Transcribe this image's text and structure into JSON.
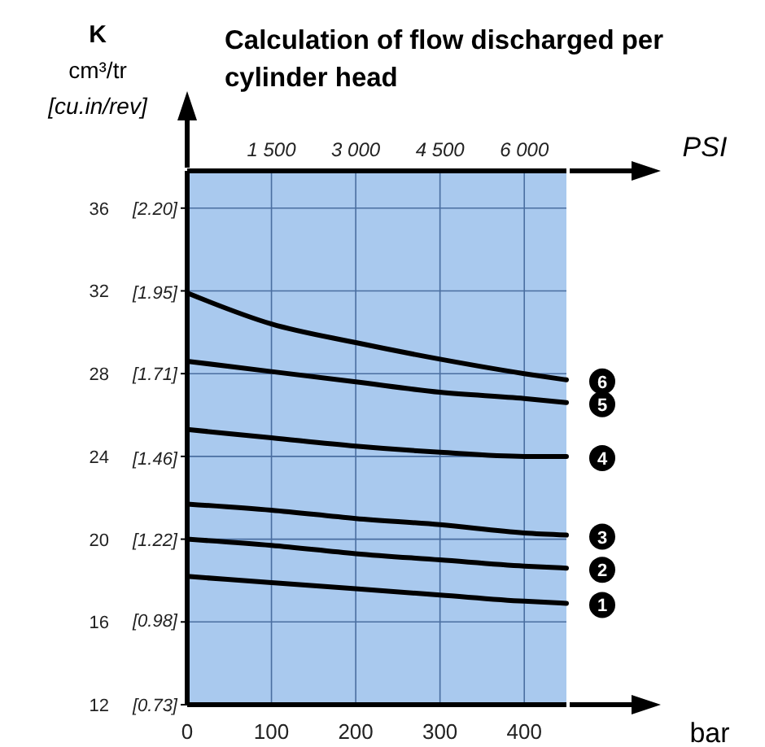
{
  "chart_data": {
    "type": "line",
    "title": "Calculation of flow discharged per cylinder head",
    "ylabel": "K\ncm³/tr\n[cu.in/rev]",
    "xlabel": "bar",
    "x2label": "PSI",
    "x": [
      0,
      100,
      200,
      300,
      400,
      450
    ],
    "xlim": [
      0,
      450
    ],
    "xticks": [
      0,
      100,
      200,
      300,
      400
    ],
    "x2lim": [
      0,
      6750
    ],
    "x2ticks": [
      {
        "value": 1500,
        "label": "1 500"
      },
      {
        "value": 3000,
        "label": "3 000"
      },
      {
        "value": 4500,
        "label": "4 500"
      },
      {
        "value": 6000,
        "label": "6 000"
      }
    ],
    "ylim": [
      12,
      37.8
    ],
    "yticks": [
      12,
      16,
      20,
      24,
      28,
      32,
      36
    ],
    "y2lim": [
      0.73,
      2.31
    ],
    "legend": "right",
    "y2ticks": [
      {
        "value": 0.73,
        "label": "[0.73]"
      },
      {
        "value": 0.98,
        "label": "[0.98]"
      },
      {
        "value": 1.22,
        "label": "[1.22]"
      },
      {
        "value": 1.46,
        "label": "[1.46]"
      },
      {
        "value": 1.71,
        "label": "[1.71]"
      },
      {
        "value": 1.95,
        "label": "[1.95]"
      },
      {
        "value": 2.2,
        "label": "[2.20]"
      }
    ],
    "grid": true,
    "marker": "none",
    "line_style": "solid",
    "series": [
      {
        "name": "1",
        "color": "#000000",
        "values": [
          18.2,
          17.9,
          17.6,
          17.3,
          17.0,
          16.9
        ]
      },
      {
        "name": "2",
        "color": "#000000",
        "values": [
          20.0,
          19.7,
          19.3,
          19.0,
          18.7,
          18.6
        ]
      },
      {
        "name": "3",
        "color": "#000000",
        "values": [
          21.7,
          21.4,
          21.0,
          20.7,
          20.3,
          20.2
        ]
      },
      {
        "name": "4",
        "color": "#000000",
        "values": [
          25.3,
          24.9,
          24.5,
          24.2,
          24.0,
          24.0
        ]
      },
      {
        "name": "5",
        "color": "#000000",
        "values": [
          28.6,
          28.1,
          27.6,
          27.1,
          26.8,
          26.6
        ]
      },
      {
        "name": "6",
        "color": "#000000",
        "values": [
          31.9,
          30.4,
          29.5,
          28.7,
          28.0,
          27.7
        ]
      }
    ]
  }
}
